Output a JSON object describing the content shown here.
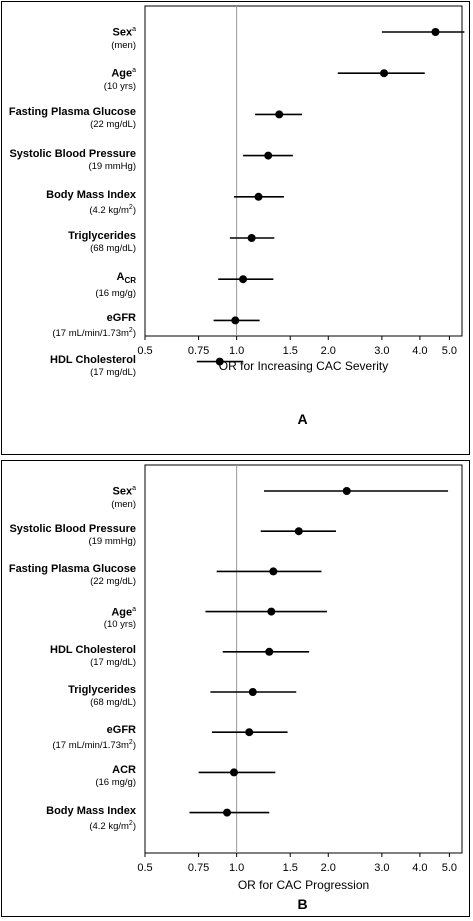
{
  "chart_data": [
    {
      "type": "forest",
      "panel_label": "A",
      "xlabel": "OR for Increasing CAC Severity",
      "x_scale": "log",
      "xlim": [
        0.5,
        5.5
      ],
      "ticks": [
        0.5,
        0.75,
        1.0,
        1.5,
        2.0,
        3.0,
        4.0,
        5.0
      ],
      "tick_labels": [
        "0.5",
        "0.75",
        "1.0",
        "1.5",
        "2.0",
        "3.0",
        "4.0",
        "5.0"
      ],
      "reference_line": 1.0,
      "rows": [
        {
          "label": "Sex",
          "sup": "a",
          "sub": "",
          "unit": "(men)",
          "unit_sup": "",
          "or": 4.5,
          "lo": 3.0,
          "hi": 5.6
        },
        {
          "label": "Age",
          "sup": "a",
          "sub": "",
          "unit": "(10 yrs)",
          "unit_sup": "",
          "or": 3.05,
          "lo": 2.15,
          "hi": 4.15
        },
        {
          "label": "Fasting Plasma Glucose",
          "sup": "",
          "sub": "",
          "unit": "(22 mg/dL)",
          "unit_sup": "",
          "or": 1.38,
          "lo": 1.15,
          "hi": 1.64
        },
        {
          "label": "Systolic Blood Pressure",
          "sup": "",
          "sub": "",
          "unit": "(19 mmHg)",
          "unit_sup": "",
          "or": 1.27,
          "lo": 1.05,
          "hi": 1.53
        },
        {
          "label": "Body Mass Index",
          "sup": "",
          "sub": "",
          "unit": "(4.2 kg/m",
          "unit_sup": "2",
          "unit_end": ")",
          "or": 1.18,
          "lo": 0.98,
          "hi": 1.43
        },
        {
          "label": "Triglycerides",
          "sup": "",
          "sub": "",
          "unit": "(68 mg/dL)",
          "unit_sup": "",
          "or": 1.12,
          "lo": 0.95,
          "hi": 1.33
        },
        {
          "label": "A",
          "sup": "",
          "sub": "CR",
          "unit": "(16 mg/g)",
          "unit_sup": "",
          "or": 1.05,
          "lo": 0.87,
          "hi": 1.32
        },
        {
          "label": "eGFR",
          "sup": "",
          "sub": "",
          "unit": "(17 mL/min/1.73m",
          "unit_sup": "2",
          "unit_end": ")",
          "or": 0.99,
          "lo": 0.84,
          "hi": 1.19
        },
        {
          "label": "HDL Cholesterol",
          "sup": "",
          "sub": "",
          "unit": "(17 mg/dL)",
          "unit_sup": "",
          "or": 0.88,
          "lo": 0.74,
          "hi": 1.05
        }
      ]
    },
    {
      "type": "forest",
      "panel_label": "B",
      "xlabel": "OR for CAC Progression",
      "x_scale": "log",
      "xlim": [
        0.5,
        5.5
      ],
      "ticks": [
        0.5,
        0.75,
        1.0,
        1.5,
        2.0,
        3.0,
        4.0,
        5.0
      ],
      "tick_labels": [
        "0.5",
        "0.75",
        "1.0",
        "1.5",
        "2.0",
        "3.0",
        "4.0",
        "5.0"
      ],
      "reference_line": 1.0,
      "rows": [
        {
          "label": "Sex",
          "sup": "a",
          "sub": "",
          "unit": "(men)",
          "unit_sup": "",
          "or": 2.3,
          "lo": 1.23,
          "hi": 4.95
        },
        {
          "label": "Systolic Blood Pressure",
          "sup": "",
          "sub": "",
          "unit": "(19 mmHg)",
          "unit_sup": "",
          "or": 1.6,
          "lo": 1.2,
          "hi": 2.12
        },
        {
          "label": "Fasting Plasma Glucose",
          "sup": "",
          "sub": "",
          "unit": "(22 mg/dL)",
          "unit_sup": "",
          "or": 1.32,
          "lo": 0.86,
          "hi": 1.9
        },
        {
          "label": "Age",
          "sup": "a",
          "sub": "",
          "unit": "(10 yrs)",
          "unit_sup": "",
          "or": 1.3,
          "lo": 0.79,
          "hi": 1.98
        },
        {
          "label": "HDL Cholesterol",
          "sup": "",
          "sub": "",
          "unit": "(17 mg/dL)",
          "unit_sup": "",
          "or": 1.28,
          "lo": 0.9,
          "hi": 1.73
        },
        {
          "label": "Triglycerides",
          "sup": "",
          "sub": "",
          "unit": "(68 mg/dL)",
          "unit_sup": "",
          "or": 1.13,
          "lo": 0.82,
          "hi": 1.57
        },
        {
          "label": "eGFR",
          "sup": "",
          "sub": "",
          "unit": "(17 mL/min/1.73m",
          "unit_sup": "2",
          "unit_end": ")",
          "or": 1.1,
          "lo": 0.83,
          "hi": 1.47
        },
        {
          "label": "ACR",
          "sup": "",
          "sub": "",
          "unit": "(16 mg/g)",
          "unit_sup": "",
          "or": 0.98,
          "lo": 0.75,
          "hi": 1.34
        },
        {
          "label": "Body Mass Index",
          "sup": "",
          "sub": "",
          "unit": "(4.2 kg/m",
          "unit_sup": "2",
          "unit_end": ")",
          "or": 0.93,
          "lo": 0.7,
          "hi": 1.28
        }
      ]
    }
  ]
}
